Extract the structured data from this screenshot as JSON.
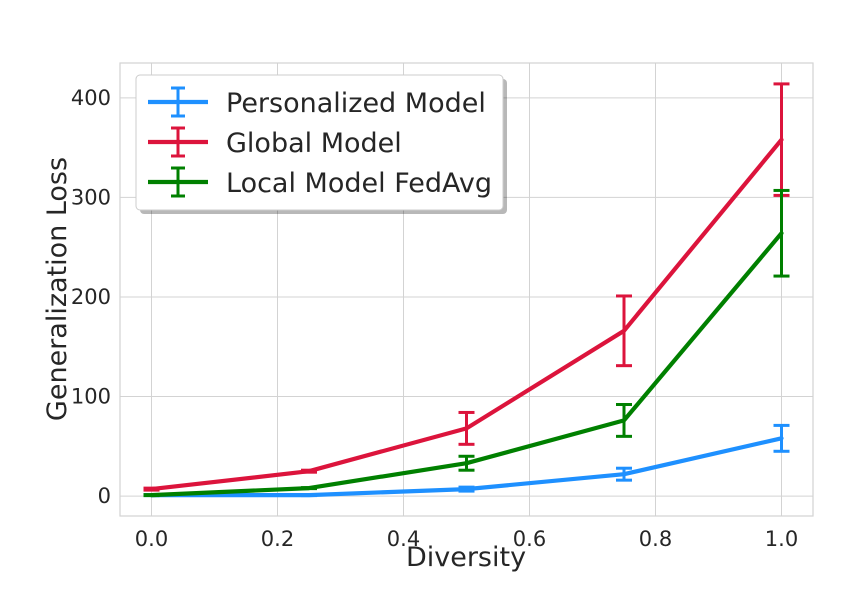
{
  "chart_data": {
    "type": "line",
    "title": "",
    "xlabel": "Diversity",
    "ylabel": "Generalization Loss",
    "xlim": [
      -0.05,
      1.05
    ],
    "ylim": [
      -20,
      435
    ],
    "xticks": [
      0.0,
      0.2,
      0.4,
      0.6,
      0.8,
      1.0
    ],
    "xtick_labels": [
      "0.0",
      "0.2",
      "0.4",
      "0.6",
      "0.8",
      "1.0"
    ],
    "yticks": [
      0,
      100,
      200,
      300,
      400
    ],
    "ytick_labels": [
      "0",
      "100",
      "200",
      "300",
      "400"
    ],
    "grid": true,
    "legend_position": "top-left",
    "x": [
      0.0,
      0.25,
      0.5,
      0.75,
      1.0
    ],
    "series": [
      {
        "name": "Personalized Model",
        "color": "#1e90ff",
        "values": [
          1,
          1,
          7,
          22,
          58
        ],
        "errors": [
          0.5,
          0.5,
          2,
          6,
          13
        ]
      },
      {
        "name": "Global Model",
        "color": "#dc143c",
        "values": [
          7,
          25,
          68,
          166,
          358
        ],
        "errors": [
          1,
          1,
          16,
          35,
          56
        ]
      },
      {
        "name": "Local Model FedAvg",
        "color": "#008000",
        "values": [
          1,
          8,
          33,
          76,
          264
        ],
        "errors": [
          0.5,
          0.5,
          7,
          16,
          43
        ]
      }
    ]
  }
}
